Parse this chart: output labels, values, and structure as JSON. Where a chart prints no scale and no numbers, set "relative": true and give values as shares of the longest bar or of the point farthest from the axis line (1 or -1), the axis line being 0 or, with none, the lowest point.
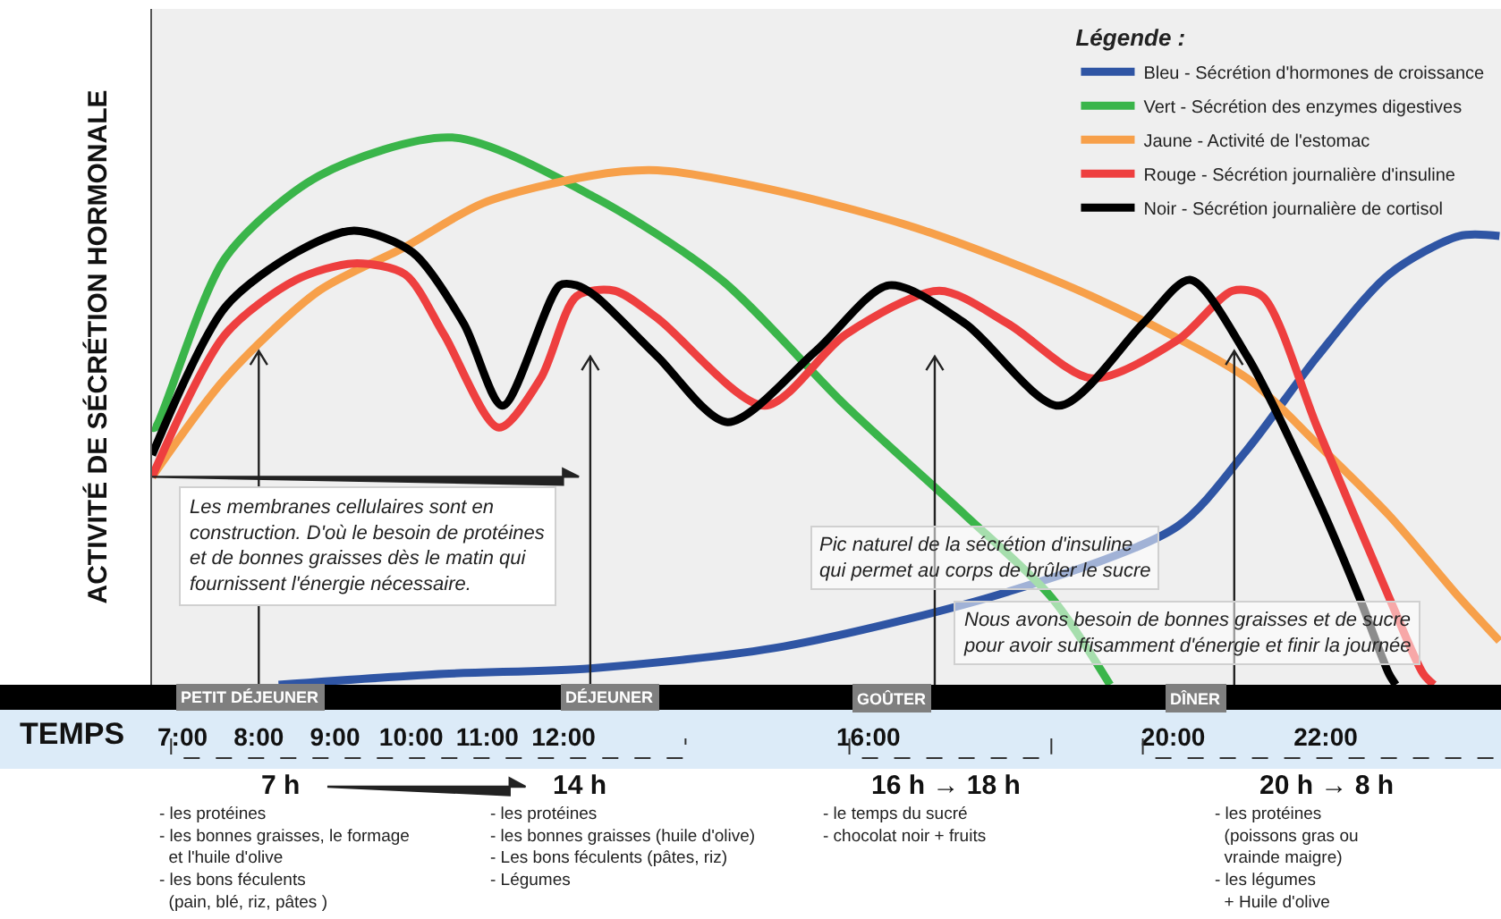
{
  "chart_data": {
    "type": "line",
    "relative": true,
    "ylabel": "ACTIVITÉ DE SÉCRÉTION HORMONALE",
    "xlabel": "TEMPS",
    "legend_title": "Légende :",
    "legend": "top right",
    "grid": false,
    "marker": "none",
    "line_style": "solid",
    "xlim": [
      6.6,
      24.3
    ],
    "xticks": [
      {
        "value": 7,
        "label": "7:00"
      },
      {
        "value": 8,
        "label": "8:00"
      },
      {
        "value": 9,
        "label": "9:00"
      },
      {
        "value": 10,
        "label": "10:00"
      },
      {
        "value": 11,
        "label": "11:00"
      },
      {
        "value": 12,
        "label": "12:00"
      },
      {
        "value": 16,
        "label": "16:00"
      },
      {
        "value": 20,
        "label": "20:00"
      },
      {
        "value": 22,
        "label": "22:00"
      }
    ],
    "series": [
      {
        "name": "Bleu - Sécrétion d'hormones de croissance",
        "color": "#2f55a4",
        "x": [
          8.26,
          10.43,
          12.35,
          14.89,
          17.83,
          20.06,
          20.97,
          21.89,
          22.83,
          23.75,
          24.28
        ],
        "values": [
          0,
          0.02,
          0.03,
          0.07,
          0.17,
          0.29,
          0.43,
          0.6,
          0.75,
          0.82,
          0.82
        ]
      },
      {
        "name": "Vert - Sécrétion des enzymes digestives",
        "color": "#3ab54a",
        "x": [
          6.6,
          6.64,
          7.56,
          8.79,
          10.54,
          12.42,
          14.07,
          15.7,
          17.27,
          18.4,
          19.17
        ],
        "values": [
          0.47,
          0.47,
          0.78,
          0.93,
          1,
          0.89,
          0.74,
          0.51,
          0.31,
          0.16,
          0
        ]
      },
      {
        "name": "Jaune - Activité de l'estomac",
        "color": "#f7a04a",
        "x": [
          6.6,
          7.56,
          8.79,
          9.92,
          10.94,
          12.35,
          13.23,
          14.89,
          16.73,
          18.93,
          20.97,
          21.89,
          22.83,
          23.75,
          24.28
        ],
        "values": [
          0.38,
          0.56,
          0.72,
          0.8,
          0.88,
          0.93,
          0.94,
          0.9,
          0.83,
          0.71,
          0.56,
          0.44,
          0.31,
          0.16,
          0.08
        ]
      },
      {
        "name": "Rouge - Sécrétion journalière d'insuline",
        "color": "#ee3f3f",
        "x": [
          6.6,
          7.56,
          8.49,
          9.25,
          9.92,
          10.43,
          11.15,
          11.7,
          12.17,
          12.67,
          13.23,
          14.64,
          15.7,
          16.93,
          17.83,
          18.93,
          20.06,
          20.78,
          21.17,
          21.89,
          22.83,
          23.28,
          23.42
        ],
        "values": [
          0.38,
          0.64,
          0.74,
          0.77,
          0.75,
          0.64,
          0.47,
          0.56,
          0.71,
          0.72,
          0.67,
          0.51,
          0.64,
          0.72,
          0.66,
          0.56,
          0.63,
          0.72,
          0.71,
          0.47,
          0.16,
          0.02,
          0
        ]
      },
      {
        "name": "Noir - Sécrétion journalière de cortisol",
        "color": "#000000",
        "x": [
          6.6,
          7.56,
          8.49,
          9.25,
          10.02,
          10.69,
          11.2,
          11.95,
          12.17,
          12.42,
          13.23,
          14.15,
          15.31,
          16.27,
          17.27,
          18.5,
          19.6,
          20.22,
          20.97,
          21.89,
          22.44,
          22.83,
          22.92
        ],
        "values": [
          0.42,
          0.69,
          0.79,
          0.83,
          0.79,
          0.66,
          0.51,
          0.73,
          0.73,
          0.71,
          0.6,
          0.48,
          0.61,
          0.73,
          0.66,
          0.51,
          0.66,
          0.74,
          0.6,
          0.34,
          0.16,
          0.02,
          0
        ]
      }
    ],
    "annotations": [
      "Les membranes cellulaires sont en\nconstruction. D'où le besoin de protéines\net de bonnes graisses dès le matin qui\nfournissent l'énergie nécessaire.",
      "Pic naturel de la sécrétion d'insuline\nqui permet au corps de brûler le sucre",
      "Nous avons besoin de bonnes graisses et de sucre\npour avoir suffisamment d'énergie et finir la journée",
      "PETIT DÉJEUNER",
      "DÉJEUNER",
      "GOÛTER",
      "DÎNER",
      "7 h",
      "14 h",
      "16 h → 18 h",
      "20 h → 8 h",
      "- les protéines\n- les bonnes graisses, le formage\n  et l'huile d'olive\n- les bons féculents\n  (pain, blé, riz, pâtes )",
      "- les protéines\n- les bonnes graisses (huile d'olive)\n- Les bons féculents (pâtes, riz)\n- Légumes",
      "- le temps du sucré\n- chocolat noir + fruits",
      "- les protéines\n  (poissons gras ou\n  vrainde maigre)\n- les légumes\n  + Huile d'olive"
    ]
  }
}
